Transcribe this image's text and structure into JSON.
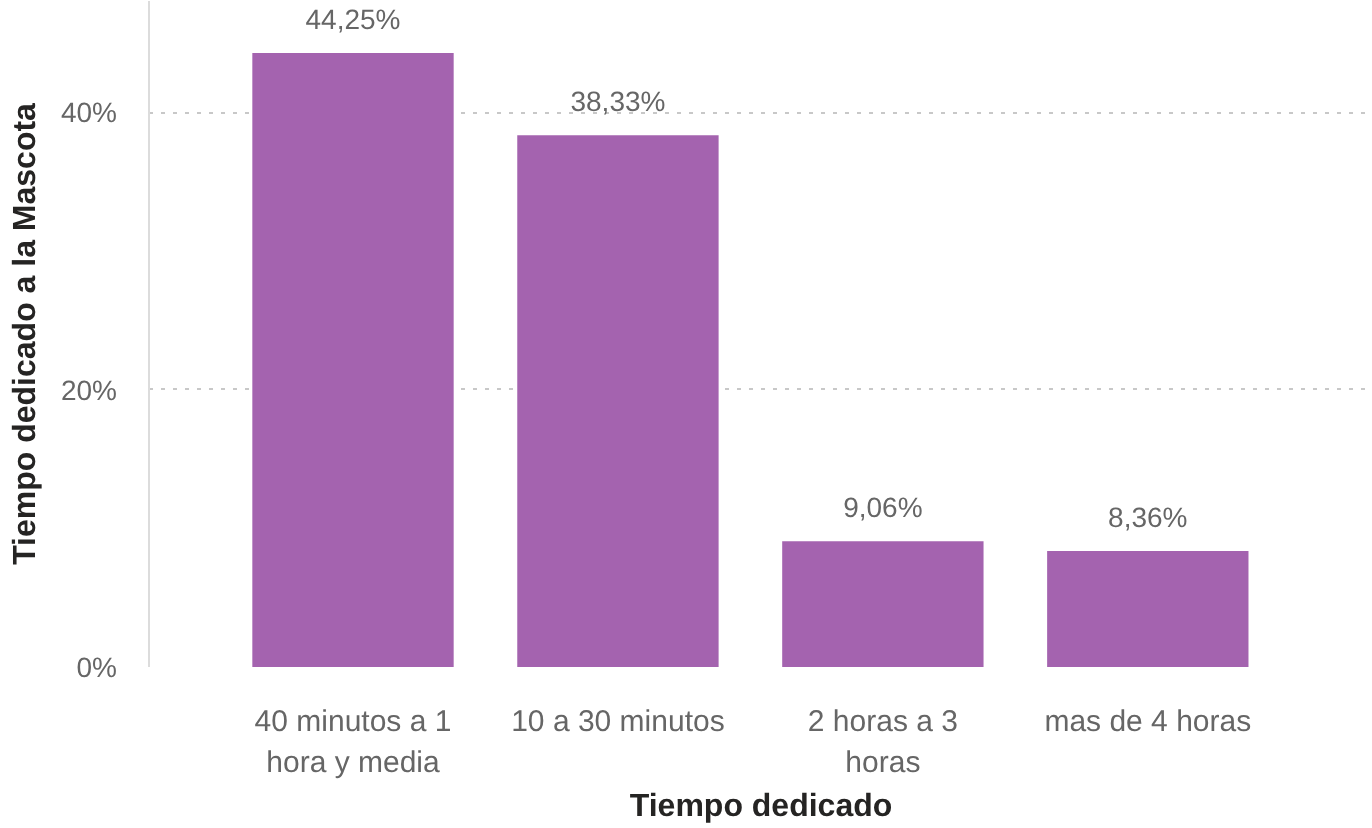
{
  "chart_data": {
    "type": "bar",
    "xlabel": "Tiempo dedicado",
    "ylabel": "Tiempo dedicado a la Mascota",
    "categories": [
      "40 minutos a 1 hora y media",
      "10 a 30 minutos",
      "2 horas a 3 horas",
      "mas de 4 horas"
    ],
    "values": [
      44.25,
      38.33,
      9.06,
      8.36
    ],
    "color": "#a463af",
    "value_labels": [
      "44,25%",
      "38,33%",
      "9,06%",
      "8,36%"
    ],
    "ylim": [
      0,
      48
    ],
    "yticks": [
      {
        "value": 0,
        "label": "0%"
      },
      {
        "value": 20,
        "label": "20%"
      },
      {
        "value": 40,
        "label": "40%"
      }
    ],
    "grid": "y"
  }
}
